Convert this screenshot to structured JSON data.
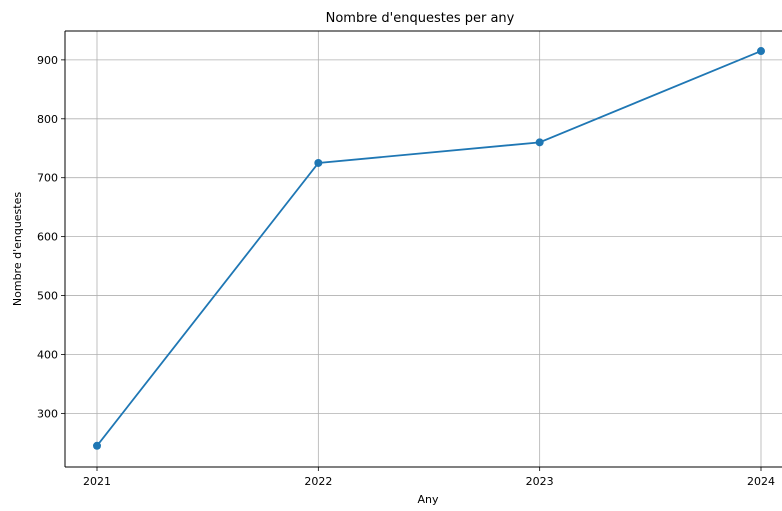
{
  "chart_data": {
    "type": "line",
    "title": "Nombre d'enquestes per any",
    "xlabel": "Any",
    "ylabel": "Nombre d'enquestes",
    "x": [
      2021,
      2022,
      2023,
      2024
    ],
    "series": [
      {
        "values": [
          245,
          725,
          760,
          915
        ],
        "color": "#1f77b4",
        "marker": "circle"
      }
    ],
    "xticks": [
      "2021",
      "2022",
      "2023",
      "2024"
    ],
    "yticks": [
      300,
      400,
      500,
      600,
      700,
      800,
      900
    ],
    "ylim": [
      209,
      949
    ],
    "grid": true
  }
}
